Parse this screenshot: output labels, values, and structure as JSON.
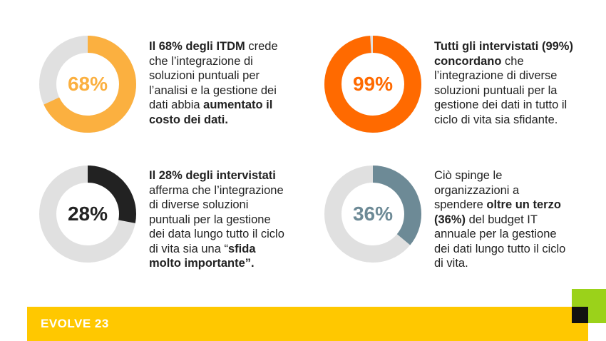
{
  "chart_data": [
    {
      "type": "pie",
      "variant": "donut",
      "value": 68,
      "label": "68%",
      "color": "#fbb040",
      "track_color": "#e0e0e0",
      "text_parts": [
        {
          "t": "Il 68% degli ITDM",
          "b": true
        },
        {
          "t": " crede che l’integrazione di soluzioni puntuali per l’analisi e la gestione dei dati abbia ",
          "b": false
        },
        {
          "t": "aumentato il costo dei dati.",
          "b": true
        }
      ]
    },
    {
      "type": "pie",
      "variant": "donut",
      "value": 99,
      "label": "99%",
      "color": "#ff6a00",
      "track_color": "#e0e0e0",
      "text_parts": [
        {
          "t": "Tutti gli intervistati (99%) concordano",
          "b": true
        },
        {
          "t": " che l’integrazione di diverse soluzioni puntuali per la gestione dei dati in tutto il ciclo di vita sia sfidante.",
          "b": false
        }
      ]
    },
    {
      "type": "pie",
      "variant": "donut",
      "value": 28,
      "label": "28%",
      "color": "#222222",
      "track_color": "#e0e0e0",
      "text_parts": [
        {
          "t": "Il 28% degli intervistati",
          "b": true
        },
        {
          "t": " afferma che l’integrazione di diverse soluzioni puntuali per la gestione dei data lungo tutto il ciclo di vita sia una “",
          "b": false
        },
        {
          "t": "sfida molto importante",
          "b": true
        },
        {
          "t": "”.",
          "b": false
        }
      ]
    },
    {
      "type": "pie",
      "variant": "donut",
      "value": 36,
      "label": "36%",
      "color": "#6d8a96",
      "track_color": "#e0e0e0",
      "text_parts": [
        {
          "t": "Ciò spinge le organizzazioni a spendere ",
          "b": false
        },
        {
          "t": "oltre un terzo (36%)",
          "b": true
        },
        {
          "t": " del budget IT annuale per la gestione dei dati lungo tutto il ciclo di vita.",
          "b": false
        }
      ]
    }
  ],
  "footer": {
    "brand": "EVOLVE 23",
    "band_color": "#ffc800",
    "accent_green": "#9bd21a",
    "accent_black": "#111111"
  }
}
